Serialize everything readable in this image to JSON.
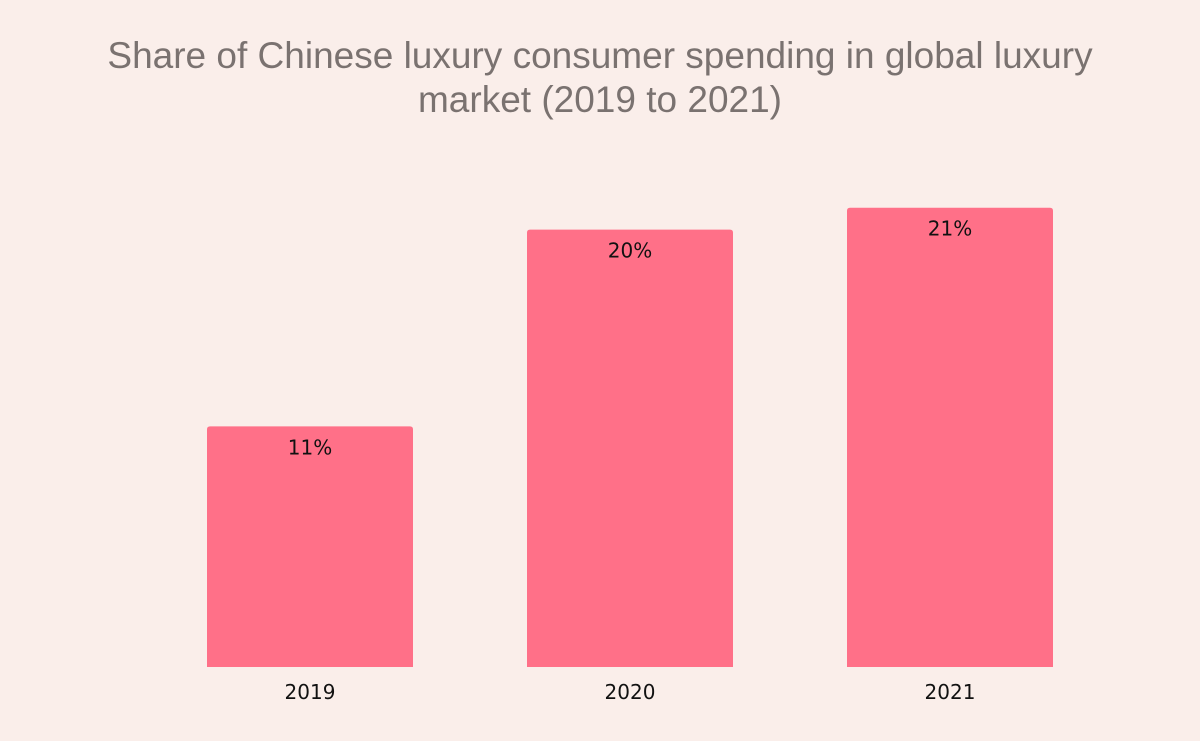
{
  "chart_data": {
    "type": "bar",
    "title": "Share of Chinese luxury consumer spending in global luxury market (2019 to 2021)",
    "title_lines": [
      "Share of Chinese luxury consumer spending in global luxury",
      "market (2019 to 2021)"
    ],
    "categories": [
      "2019",
      "2020",
      "2021"
    ],
    "values": [
      11,
      20,
      21
    ],
    "value_labels": [
      "11%",
      "20%",
      "21%"
    ],
    "xlabel": "",
    "ylabel": "",
    "ylim": [
      0,
      23
    ],
    "grid": false,
    "legend": "none",
    "bar_color": "#ff7088",
    "background_color": "#faeeea",
    "title_color": "#7a7270"
  }
}
